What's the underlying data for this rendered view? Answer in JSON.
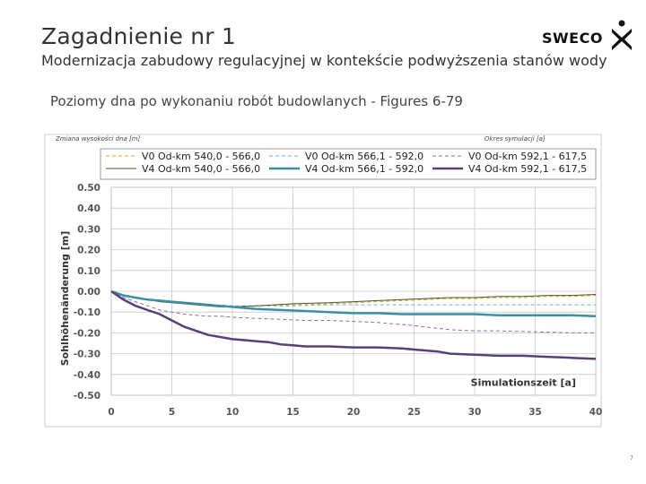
{
  "header": {
    "title": "Zagadnienie nr 1",
    "subtitle": "Modernizacja zabudowy regulacyjnej w kontekście podwyższenia stanów wody",
    "logo_text": "SWECO",
    "section_title": "Poziomy dna po wykonaniu robót budowlanych - Figures 6-79",
    "page_number": "7"
  },
  "chart_data": {
    "type": "line",
    "title": "",
    "note_left": "Zmiana wysokości dna [m]",
    "note_right": "Okres symulacji [a]",
    "xlabel": "Simulationszeit [a]",
    "ylabel": "Sohlhöhenänderung [m]",
    "xlim": [
      0,
      40
    ],
    "ylim": [
      -0.5,
      0.5
    ],
    "xticks": [
      "0",
      "5",
      "10",
      "15",
      "20",
      "25",
      "30",
      "35",
      "40"
    ],
    "yticks": [
      "0.50",
      "0.40",
      "0.30",
      "0.20",
      "0.10",
      "0.00",
      "-0.10",
      "-0.20",
      "-0.30",
      "-0.40",
      "-0.50"
    ],
    "grid": true,
    "legend_position": "top",
    "series": [
      {
        "name": "V0 Od-km 540,0 - 566,0",
        "color": "#c9b21b",
        "style": "dash",
        "width": 1,
        "x": [
          0,
          1,
          2,
          3,
          4,
          5,
          6,
          7,
          8,
          9,
          10,
          12,
          15,
          18,
          20,
          22,
          24,
          26,
          28,
          30,
          32,
          34,
          36,
          38,
          40
        ],
        "y": [
          0,
          -0.02,
          -0.03,
          -0.04,
          -0.05,
          -0.055,
          -0.06,
          -0.065,
          -0.07,
          -0.075,
          -0.075,
          -0.07,
          -0.065,
          -0.06,
          -0.055,
          -0.05,
          -0.045,
          -0.04,
          -0.035,
          -0.035,
          -0.03,
          -0.03,
          -0.025,
          -0.025,
          -0.02
        ]
      },
      {
        "name": "V0 Od-km 566,1 - 592,0",
        "color": "#6aaed6",
        "style": "dash",
        "width": 1,
        "x": [
          0,
          1,
          2,
          3,
          4,
          5,
          6,
          7,
          8,
          10,
          12,
          15,
          18,
          20,
          22,
          25,
          28,
          30,
          32,
          35,
          38,
          40
        ],
        "y": [
          0,
          -0.02,
          -0.03,
          -0.04,
          -0.045,
          -0.05,
          -0.055,
          -0.06,
          -0.065,
          -0.07,
          -0.07,
          -0.07,
          -0.065,
          -0.065,
          -0.065,
          -0.065,
          -0.065,
          -0.065,
          -0.065,
          -0.065,
          -0.065,
          -0.065
        ]
      },
      {
        "name": "V0 Od-km 592,1 - 617,5",
        "color": "#8a6f9e",
        "style": "dash",
        "width": 1,
        "x": [
          0,
          1,
          2,
          3,
          4,
          5,
          6,
          7,
          8,
          9,
          10,
          12,
          14,
          16,
          18,
          20,
          22,
          25,
          28,
          30,
          32,
          35,
          38,
          40
        ],
        "y": [
          0,
          -0.03,
          -0.05,
          -0.07,
          -0.09,
          -0.1,
          -0.11,
          -0.115,
          -0.12,
          -0.12,
          -0.125,
          -0.13,
          -0.135,
          -0.14,
          -0.14,
          -0.145,
          -0.15,
          -0.165,
          -0.185,
          -0.19,
          -0.19,
          -0.195,
          -0.2,
          -0.2
        ]
      },
      {
        "name": "V4 Od-km 540,0 - 566,0",
        "color": "#55502a",
        "style": "solid",
        "width": 1,
        "x": [
          0,
          1,
          2,
          3,
          4,
          5,
          6,
          7,
          8,
          9,
          10,
          12,
          15,
          18,
          20,
          22,
          24,
          26,
          28,
          30,
          32,
          34,
          36,
          38,
          40
        ],
        "y": [
          0,
          -0.02,
          -0.03,
          -0.04,
          -0.05,
          -0.055,
          -0.06,
          -0.065,
          -0.07,
          -0.075,
          -0.075,
          -0.07,
          -0.06,
          -0.055,
          -0.05,
          -0.045,
          -0.04,
          -0.035,
          -0.03,
          -0.03,
          -0.025,
          -0.025,
          -0.02,
          -0.02,
          -0.015
        ]
      },
      {
        "name": "V4 Od-km 566,1 - 592,0",
        "color": "#3a8fa6",
        "style": "solid",
        "width": 2.5,
        "x": [
          0,
          1,
          2,
          3,
          4,
          5,
          6,
          7,
          8,
          9,
          10,
          12,
          14,
          16,
          18,
          20,
          22,
          24,
          26,
          28,
          30,
          32,
          34,
          36,
          38,
          40
        ],
        "y": [
          0,
          -0.02,
          -0.03,
          -0.04,
          -0.045,
          -0.05,
          -0.055,
          -0.06,
          -0.065,
          -0.07,
          -0.075,
          -0.085,
          -0.09,
          -0.095,
          -0.1,
          -0.105,
          -0.105,
          -0.11,
          -0.11,
          -0.11,
          -0.11,
          -0.115,
          -0.115,
          -0.115,
          -0.115,
          -0.12
        ]
      },
      {
        "name": "V4 Od-km 592,1 - 617,5",
        "color": "#5b3f7c",
        "style": "solid",
        "width": 2.5,
        "x": [
          0,
          1,
          2,
          3,
          4,
          5,
          6,
          7,
          8,
          9,
          10,
          11,
          12,
          13,
          14,
          15,
          16,
          18,
          20,
          22,
          24,
          25,
          26,
          27,
          28,
          30,
          32,
          34,
          36,
          38,
          40
        ],
        "y": [
          0,
          -0.04,
          -0.07,
          -0.09,
          -0.11,
          -0.14,
          -0.17,
          -0.19,
          -0.21,
          -0.22,
          -0.23,
          -0.235,
          -0.24,
          -0.245,
          -0.255,
          -0.26,
          -0.265,
          -0.265,
          -0.27,
          -0.27,
          -0.275,
          -0.28,
          -0.285,
          -0.29,
          -0.3,
          -0.305,
          -0.31,
          -0.31,
          -0.315,
          -0.32,
          -0.325
        ]
      }
    ]
  }
}
